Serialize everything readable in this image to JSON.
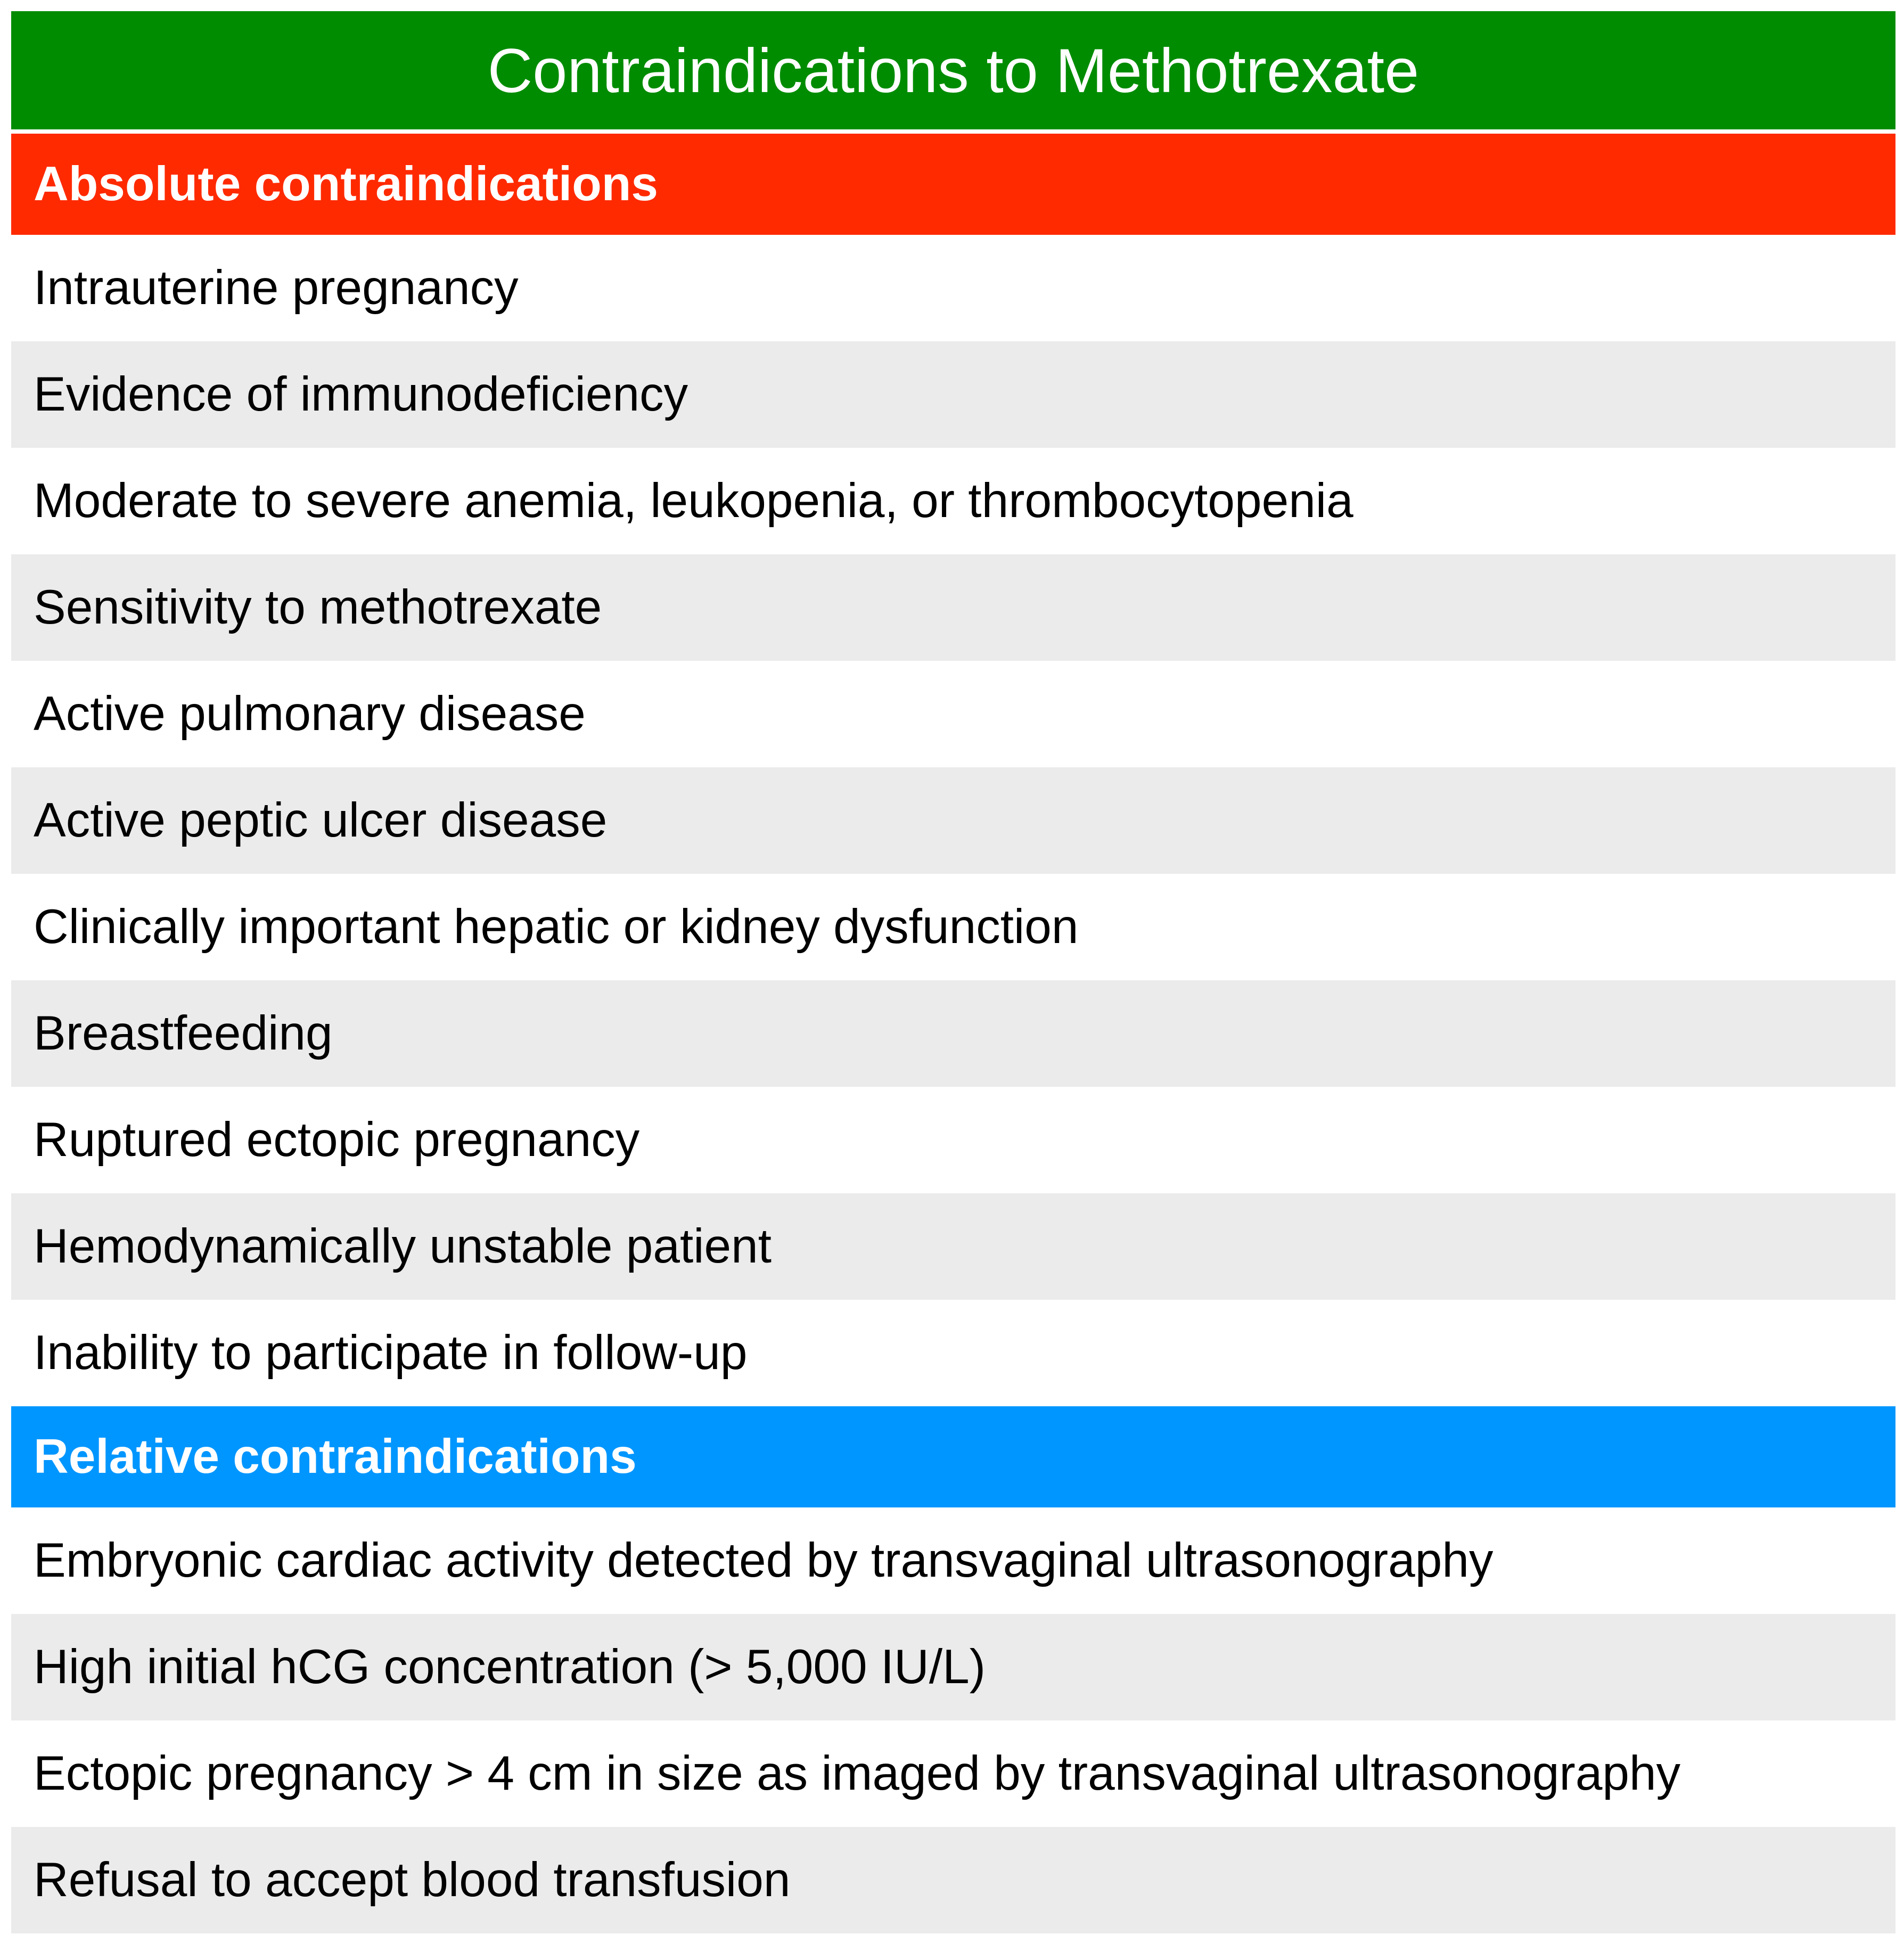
{
  "title": "Contraindications to Methotrexate",
  "colors": {
    "title_bg": "#008c00",
    "absolute_bg": "#ff2a00",
    "relative_bg": "#0096ff",
    "shaded_row": "#ebebeb"
  },
  "sections": [
    {
      "heading": "Absolute contraindications",
      "items": [
        "Intrauterine pregnancy",
        "Evidence of immunodeficiency",
        "Moderate to severe anemia, leukopenia, or thrombocytopenia",
        "Sensitivity to methotrexate",
        "Active pulmonary disease",
        "Active peptic ulcer disease",
        "Clinically important hepatic or kidney dysfunction",
        "Breastfeeding",
        "Ruptured ectopic pregnancy",
        "Hemodynamically unstable patient",
        "Inability to participate in follow-up"
      ]
    },
    {
      "heading": "Relative contraindications",
      "items": [
        "Embryonic cardiac activity detected by transvaginal ultrasonography",
        "High initial hCG concentration (> 5,000 IU/L)",
        "Ectopic pregnancy > 4 cm in size as imaged by transvaginal ultrasonography",
        "Refusal to accept blood transfusion"
      ]
    }
  ]
}
